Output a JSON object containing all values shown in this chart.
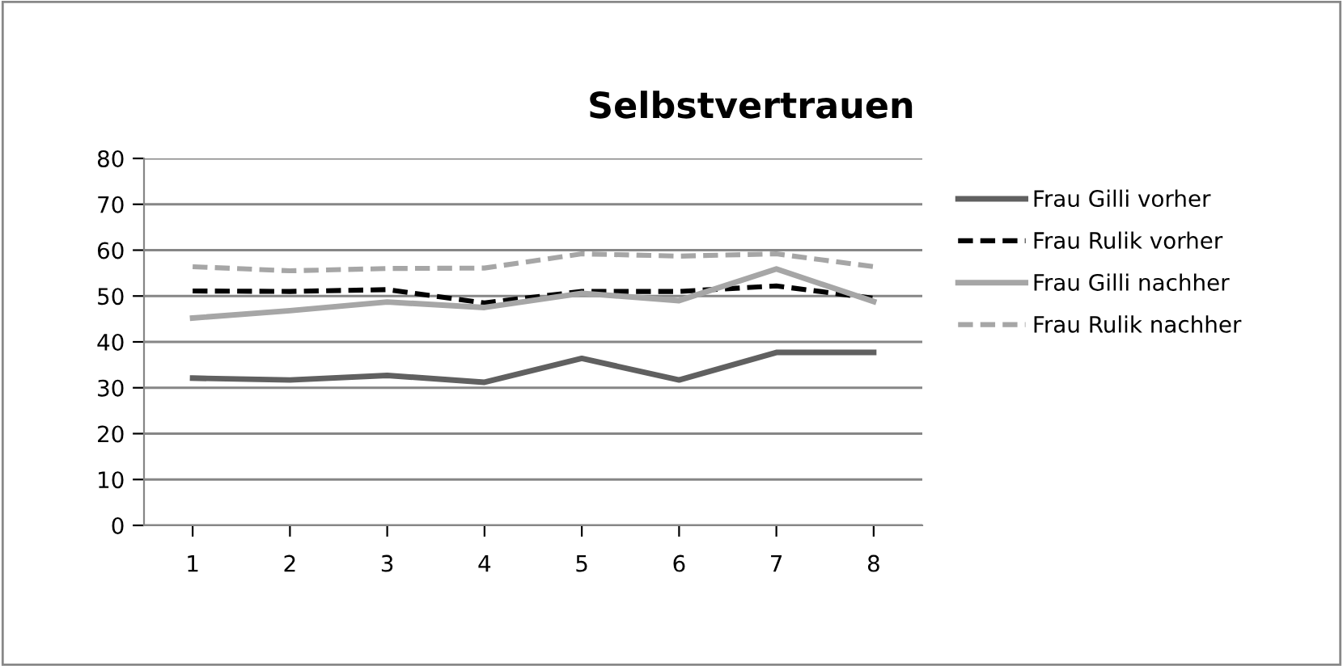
{
  "chart_data": {
    "type": "line",
    "title": "Selbstvertrauen",
    "categories": [
      "1",
      "2",
      "3",
      "4",
      "5",
      "6",
      "7",
      "8"
    ],
    "series": [
      {
        "name": "Frau Gilli vorher",
        "color": "#606060",
        "line_style": "solid",
        "values": [
          32.1,
          31.7,
          32.7,
          31.2,
          36.4,
          31.7,
          37.7,
          37.7
        ]
      },
      {
        "name": "Frau Rulik vorher",
        "color": "#000000",
        "line_style": "dashed",
        "values": [
          51.1,
          51,
          51.4,
          48.5,
          51,
          51,
          52.2,
          49.5
        ]
      },
      {
        "name": "Frau Gilli nachher",
        "color": "#a6a6a6",
        "line_style": "solid",
        "values": [
          45.2,
          46.8,
          48.7,
          47.5,
          50.6,
          49,
          55.9,
          48.8
        ]
      },
      {
        "name": "Frau Rulik nachher",
        "color": "#a6a6a6",
        "line_style": "dashed",
        "values": [
          56.4,
          55.5,
          56,
          56.1,
          59.2,
          58.7,
          59.2,
          56.4
        ]
      }
    ],
    "ylim": [
      0,
      80
    ],
    "yticks": [
      0,
      10,
      20,
      30,
      40,
      50,
      60,
      70,
      80
    ],
    "grid": "y",
    "legend": "right",
    "marker": "none"
  }
}
